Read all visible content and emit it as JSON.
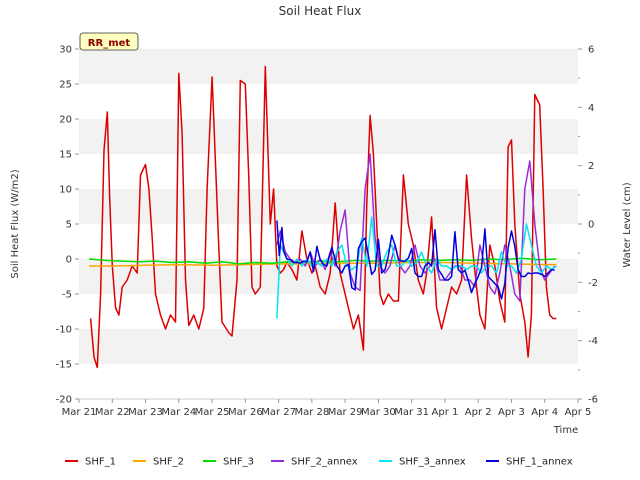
{
  "chart_data": {
    "type": "line",
    "title": "Soil Heat Flux",
    "xlabel": "Time",
    "ylabel": "Soil Heat Flux (W/m2)",
    "y2label": "Water Level (cm)",
    "site_badge": "RR_met",
    "x_ticks": [
      "Mar 21",
      "Mar 22",
      "Mar 23",
      "Mar 24",
      "Mar 25",
      "Mar 26",
      "Mar 27",
      "Mar 28",
      "Mar 29",
      "Mar 30",
      "Mar 31",
      "Apr 1",
      "Apr 2",
      "Apr 3",
      "Apr 4",
      "Apr 5"
    ],
    "xlim_days": [
      0,
      15
    ],
    "y_ticks": [
      -20,
      -15,
      -10,
      -5,
      0,
      5,
      10,
      15,
      20,
      25,
      30
    ],
    "ylim": [
      -20,
      30
    ],
    "y2_ticks": [
      -6,
      -4,
      -2,
      0,
      2,
      4,
      6
    ],
    "y2lim": [
      -6,
      6
    ],
    "grid": "horizontal bands",
    "legend_position": "bottom",
    "series": [
      {
        "name": "SHF_1",
        "color": "#dd0000",
        "x": [
          0.35,
          0.45,
          0.55,
          0.65,
          0.75,
          0.85,
          0.92,
          1.0,
          1.1,
          1.2,
          1.3,
          1.45,
          1.6,
          1.75,
          1.85,
          2.0,
          2.1,
          2.2,
          2.3,
          2.45,
          2.6,
          2.75,
          2.9,
          3.0,
          3.1,
          3.2,
          3.3,
          3.45,
          3.6,
          3.75,
          3.85,
          4.0,
          4.1,
          4.2,
          4.3,
          4.5,
          4.6,
          4.75,
          4.85,
          5.0,
          5.1,
          5.2,
          5.3,
          5.45,
          5.6,
          5.75,
          5.85,
          5.95,
          6.05,
          6.15,
          6.25,
          6.4,
          6.55,
          6.7,
          6.85,
          7.0,
          7.1,
          7.25,
          7.4,
          7.55,
          7.7,
          7.85,
          8.0,
          8.15,
          8.25,
          8.4,
          8.55,
          8.65,
          8.75,
          8.85,
          8.95,
          9.05,
          9.15,
          9.3,
          9.45,
          9.6,
          9.75,
          9.9,
          10.05,
          10.2,
          10.35,
          10.45,
          10.6,
          10.75,
          10.9,
          11.05,
          11.2,
          11.35,
          11.5,
          11.65,
          11.8,
          11.95,
          12.05,
          12.2,
          12.35,
          12.5,
          12.65,
          12.8,
          12.9,
          13.0,
          13.1,
          13.25,
          13.4,
          13.5,
          13.6,
          13.7,
          13.85,
          13.95,
          14.05,
          14.15,
          14.25,
          14.35
        ],
        "y": [
          -8.5,
          -14,
          -15.5,
          -5,
          15.5,
          21,
          9,
          -1,
          -7,
          -8,
          -4,
          -3,
          -1,
          -2,
          12,
          13.5,
          10,
          3,
          -5,
          -8,
          -10,
          -8,
          -9,
          26.5,
          18,
          -3,
          -9.5,
          -8,
          -10,
          -7,
          10,
          26,
          14,
          2,
          -9,
          -10.5,
          -11,
          -3,
          25.5,
          25,
          12,
          -4,
          -5,
          -4,
          27.5,
          5,
          10,
          -1,
          -2,
          -1.5,
          -0.5,
          -1.5,
          -3,
          4,
          0,
          -2,
          -1,
          -4,
          -5,
          -2,
          8,
          -2,
          -5,
          -8,
          -10,
          -8,
          -13,
          8,
          20.5,
          15,
          5,
          -5,
          -6.5,
          -5,
          -6,
          -6,
          12,
          5,
          2,
          -3,
          -5,
          -2,
          6,
          -7,
          -10,
          -7,
          -4,
          -5,
          -3,
          12,
          3,
          -4,
          -8,
          -10,
          2,
          -1,
          -6,
          -9,
          16,
          17,
          5,
          -5,
          -9,
          -14,
          -8,
          23.5,
          22,
          10,
          -4,
          -8,
          -8.5,
          -8.5
        ]
      },
      {
        "name": "SHF_2",
        "color": "#ffa500",
        "x": [
          0.3,
          1.0,
          2.0,
          3.0,
          4.0,
          5.0,
          6.0,
          7.0,
          8.0,
          9.0,
          10.0,
          11.0,
          12.0,
          13.0,
          14.0,
          14.35
        ],
        "y": [
          -1,
          -1,
          -0.9,
          -0.8,
          -0.9,
          -0.8,
          -0.7,
          -0.7,
          -0.6,
          -0.6,
          -0.5,
          -0.5,
          -0.6,
          -0.7,
          -0.8,
          -0.8
        ]
      },
      {
        "name": "SHF_3",
        "color": "#00dd00",
        "x": [
          0.3,
          0.8,
          1.3,
          1.8,
          2.3,
          2.8,
          3.3,
          3.8,
          4.3,
          4.8,
          5.3,
          5.8,
          6.3,
          6.8,
          7.3,
          7.8,
          8.3,
          8.8,
          9.3,
          9.8,
          10.3,
          10.8,
          11.3,
          11.8,
          12.3,
          12.8,
          13.3,
          13.8,
          14.35
        ],
        "y": [
          0,
          -0.2,
          -0.3,
          -0.4,
          -0.3,
          -0.5,
          -0.4,
          -0.6,
          -0.4,
          -0.7,
          -0.5,
          -0.6,
          -0.4,
          -0.5,
          -0.3,
          -0.4,
          -0.2,
          -0.3,
          -0.2,
          -0.3,
          -0.1,
          -0.2,
          -0.1,
          -0.2,
          0,
          -0.1,
          0.1,
          -0.1,
          0
        ]
      },
      {
        "name": "SHF_2_annex",
        "color": "#9a2cd6",
        "x": [
          5.95,
          6.05,
          6.2,
          6.35,
          6.5,
          6.65,
          6.8,
          6.95,
          7.1,
          7.25,
          7.4,
          7.55,
          7.7,
          7.85,
          8.0,
          8.15,
          8.3,
          8.45,
          8.6,
          8.75,
          8.9,
          9.05,
          9.2,
          9.35,
          9.5,
          9.65,
          9.8,
          9.95,
          10.1,
          10.25,
          10.4,
          10.55,
          10.7,
          10.85,
          11.0,
          11.15,
          11.3,
          11.45,
          11.6,
          11.75,
          11.9,
          12.05,
          12.2,
          12.35,
          12.5,
          12.65,
          12.8,
          12.95,
          13.1,
          13.25,
          13.4,
          13.55,
          13.7,
          13.85,
          14.0,
          14.15,
          14.3
        ],
        "y": [
          2,
          4,
          1,
          0,
          -0.5,
          0,
          -1,
          1,
          -1,
          0,
          -1.5,
          1,
          -1,
          4,
          7,
          -2,
          -4,
          -4.5,
          10,
          15,
          3,
          -1,
          -2,
          -1,
          2,
          -1,
          -2,
          -1,
          2,
          -1,
          -2,
          -1,
          0,
          -3,
          -3,
          -2,
          -1,
          -1,
          -3,
          -3,
          -4,
          2,
          -1,
          -4,
          -5,
          -2,
          2,
          -1,
          -5,
          -6,
          10,
          14,
          5,
          -1,
          -3,
          -2,
          -1
        ]
      },
      {
        "name": "SHF_3_annex",
        "color": "#00e5ee",
        "x": [
          5.95,
          6.05,
          6.15,
          6.25,
          6.4,
          6.55,
          6.7,
          6.85,
          7.0,
          7.15,
          7.3,
          7.45,
          7.6,
          7.75,
          7.9,
          8.05,
          8.2,
          8.35,
          8.5,
          8.65,
          8.8,
          8.95,
          9.1,
          9.25,
          9.4,
          9.55,
          9.7,
          9.85,
          10.0,
          10.15,
          10.3,
          10.45,
          10.6,
          10.75,
          10.9,
          11.05,
          11.2,
          11.35,
          11.5,
          11.65,
          11.8,
          11.95,
          12.1,
          12.25,
          12.4,
          12.55,
          12.7,
          12.85,
          13.0,
          13.15,
          13.3,
          13.45,
          13.6,
          13.75,
          13.9,
          14.05,
          14.2,
          14.35
        ],
        "y": [
          -8.5,
          2,
          1,
          0,
          -1,
          0,
          -1,
          0,
          -1,
          -0.5,
          -1,
          0,
          -1,
          1,
          2,
          -1,
          -1.5,
          -1,
          3,
          -1,
          6,
          -1,
          -1,
          1,
          2,
          -1,
          -1,
          0,
          -1,
          -0.5,
          1,
          -1,
          -2,
          0,
          -1,
          -1,
          -1.5,
          -1,
          -1,
          -1.5,
          -1,
          -1,
          -2,
          -1,
          -1,
          -2,
          1,
          -1,
          -1,
          -2,
          0,
          5,
          2,
          -1,
          -2,
          -1,
          -1.5,
          -1
        ]
      },
      {
        "name": "SHF_1_annex",
        "color": "#0000dd",
        "x": [
          5.95,
          6.02,
          6.1,
          6.15,
          6.25,
          6.35,
          6.45,
          6.55,
          6.65,
          6.75,
          6.85,
          6.95,
          7.05,
          7.15,
          7.25,
          7.35,
          7.45,
          7.6,
          7.75,
          7.9,
          8.0,
          8.1,
          8.2,
          8.3,
          8.4,
          8.5,
          8.6,
          8.7,
          8.8,
          8.9,
          9.0,
          9.1,
          9.2,
          9.3,
          9.4,
          9.5,
          9.6,
          9.7,
          9.8,
          9.9,
          10.0,
          10.1,
          10.2,
          10.3,
          10.4,
          10.5,
          10.6,
          10.7,
          10.8,
          10.9,
          11.0,
          11.1,
          11.2,
          11.3,
          11.4,
          11.5,
          11.6,
          11.7,
          11.8,
          11.9,
          12.0,
          12.1,
          12.2,
          12.3,
          12.4,
          12.5,
          12.6,
          12.7,
          12.8,
          12.9,
          13.0,
          13.1,
          13.2,
          13.3,
          13.4,
          13.5,
          13.6,
          13.7,
          13.8,
          13.9,
          14.0,
          14.1,
          14.2,
          14.3
        ],
        "y": [
          5.5,
          0.5,
          4.5,
          1.2,
          0,
          -0.1,
          -0.5,
          -0.5,
          -0.6,
          -0.3,
          -0.4,
          1,
          -1.8,
          1.8,
          -0.1,
          -0.8,
          -1,
          1.7,
          -1,
          -2,
          -1,
          -0.8,
          -4.1,
          -4.4,
          1.5,
          2.5,
          3,
          0.5,
          -2.2,
          -1.6,
          2.8,
          -2,
          -1.5,
          0.5,
          3.4,
          2,
          0,
          -0.3,
          -0.3,
          0.1,
          1.5,
          -2,
          -2.5,
          -2.5,
          -1,
          -0.5,
          -1,
          4.2,
          -1.5,
          -2.2,
          -3,
          -3,
          -2.5,
          3.9,
          -1.5,
          -2,
          -1.6,
          -3,
          -4.8,
          -3.5,
          -2.5,
          -1.3,
          4.3,
          -2.5,
          -3,
          -3.5,
          -4,
          -5.7,
          -3.5,
          1.6,
          4,
          1.8,
          -1.5,
          -2.5,
          -2.5,
          -2,
          -2.1,
          -2,
          -2,
          -2.2,
          -2.5,
          -2,
          -1.5,
          -1.6
        ]
      }
    ]
  }
}
